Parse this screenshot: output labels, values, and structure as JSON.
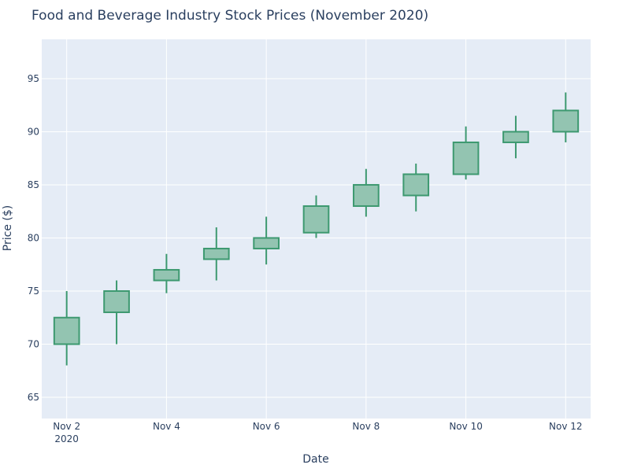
{
  "chart_data": {
    "type": "candlestick",
    "title": "Food and Beverage Industry Stock Prices (November 2020)",
    "xlabel": "Date",
    "ylabel": "Price ($)",
    "ylim": [
      63,
      98.7
    ],
    "y_ticks": [
      65,
      70,
      75,
      80,
      85,
      90,
      95
    ],
    "x_ticks": [
      {
        "date": "2020-11-02",
        "label": "Nov 2",
        "sublabel": "2020"
      },
      {
        "date": "2020-11-04",
        "label": "Nov 4",
        "sublabel": ""
      },
      {
        "date": "2020-11-06",
        "label": "Nov 6",
        "sublabel": ""
      },
      {
        "date": "2020-11-08",
        "label": "Nov 8",
        "sublabel": ""
      },
      {
        "date": "2020-11-10",
        "label": "Nov 10",
        "sublabel": ""
      },
      {
        "date": "2020-11-12",
        "label": "Nov 12",
        "sublabel": ""
      }
    ],
    "xlim": [
      "2020-11-01T12:00",
      "2020-11-12T12:00"
    ],
    "grid": true,
    "colors": {
      "increasing_line": "#3d9970",
      "increasing_fill": "#93c4b1",
      "plot_background": "#e5ecf6",
      "grid": "#ffffff",
      "text": "#2a3f5f"
    },
    "candles": [
      {
        "date": "2020-11-02",
        "open": 70,
        "high": 75,
        "low": 68,
        "close": 72.5
      },
      {
        "date": "2020-11-03",
        "open": 73,
        "high": 76,
        "low": 70,
        "close": 75
      },
      {
        "date": "2020-11-04",
        "open": 76,
        "high": 78.5,
        "low": 74.8,
        "close": 77
      },
      {
        "date": "2020-11-05",
        "open": 78,
        "high": 81,
        "low": 76,
        "close": 79
      },
      {
        "date": "2020-11-06",
        "open": 79,
        "high": 82,
        "low": 77.5,
        "close": 80
      },
      {
        "date": "2020-11-07",
        "open": 80.5,
        "high": 84,
        "low": 80,
        "close": 83
      },
      {
        "date": "2020-11-08",
        "open": 83,
        "high": 86.5,
        "low": 82,
        "close": 85
      },
      {
        "date": "2020-11-09",
        "open": 84,
        "high": 87,
        "low": 82.5,
        "close": 86
      },
      {
        "date": "2020-11-10",
        "open": 86,
        "high": 90.5,
        "low": 85.5,
        "close": 89
      },
      {
        "date": "2020-11-11",
        "open": 89,
        "high": 91.5,
        "low": 87.5,
        "close": 90
      },
      {
        "date": "2020-11-12",
        "open": 90,
        "high": 93.7,
        "low": 89,
        "close": 92
      }
    ]
  }
}
